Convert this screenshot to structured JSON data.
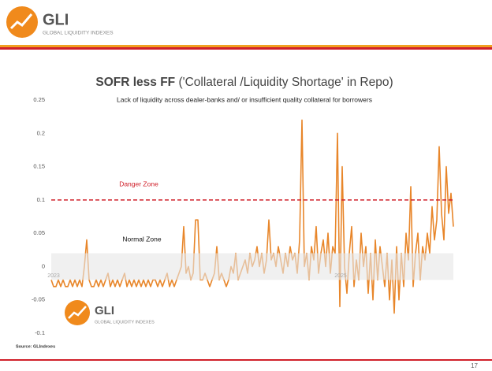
{
  "header": {
    "brand": "GLI",
    "tagline": "GLOBAL LIQUIDITY INDEXES"
  },
  "chart_data": {
    "type": "line",
    "title_bold": "SOFR less FF",
    "title_rest": "('Collateral /Liquidity Shortage' in Repo)",
    "subtitle": "Lack of liquidity across dealer-banks and/ or insufficient quality collateral for borrowers",
    "color": "#e8862a",
    "ylim": [
      -0.1,
      0.25
    ],
    "yticks": [
      -0.1,
      -0.05,
      0,
      0.05,
      0.1,
      0.15,
      0.2,
      0.25
    ],
    "grid": false,
    "threshold": 0.1,
    "threshold_label": "Danger Zone",
    "threshold_color": "#d0202a",
    "band": [
      -0.02,
      0.02
    ],
    "band_label": "Normal Zone",
    "period_labels": [
      "2023",
      "2025"
    ],
    "values": [
      -0.02,
      -0.03,
      -0.03,
      -0.02,
      -0.03,
      -0.02,
      -0.03,
      -0.03,
      -0.02,
      -0.03,
      -0.02,
      -0.03,
      -0.02,
      -0.03,
      0.0,
      0.04,
      -0.02,
      -0.03,
      -0.03,
      -0.02,
      -0.03,
      -0.02,
      -0.03,
      -0.02,
      -0.01,
      -0.03,
      -0.02,
      -0.03,
      -0.02,
      -0.03,
      -0.02,
      -0.01,
      -0.03,
      -0.02,
      -0.03,
      -0.02,
      -0.03,
      -0.02,
      -0.03,
      -0.02,
      -0.03,
      -0.02,
      -0.03,
      -0.02,
      -0.02,
      -0.03,
      -0.02,
      -0.03,
      -0.02,
      -0.01,
      -0.03,
      -0.02,
      -0.03,
      -0.02,
      -0.01,
      0.0,
      0.06,
      -0.01,
      0.0,
      -0.02,
      -0.01,
      0.07,
      0.07,
      -0.02,
      -0.02,
      -0.01,
      -0.02,
      -0.03,
      -0.02,
      -0.01,
      0.03,
      -0.02,
      -0.01,
      -0.02,
      -0.03,
      -0.02,
      0.0,
      -0.01,
      0.02,
      -0.02,
      -0.01,
      0.0,
      0.01,
      -0.01,
      0.02,
      0.0,
      0.01,
      0.03,
      0.0,
      0.02,
      -0.01,
      0.01,
      0.07,
      0.01,
      0.02,
      0.0,
      0.03,
      0.01,
      -0.01,
      0.02,
      0.0,
      0.03,
      0.01,
      0.02,
      -0.01,
      0.04,
      0.22,
      0.0,
      0.02,
      -0.02,
      0.03,
      0.01,
      0.06,
      -0.01,
      0.02,
      0.04,
      0.0,
      0.05,
      -0.01,
      0.03,
      0.02,
      0.2,
      -0.06,
      0.15,
      0.0,
      -0.04,
      0.02,
      0.06,
      -0.03,
      0.01,
      -0.02,
      0.05,
      0.0,
      0.03,
      -0.04,
      0.02,
      -0.05,
      0.04,
      -0.02,
      0.03,
      0.0,
      -0.03,
      0.02,
      -0.05,
      0.01,
      -0.07,
      0.03,
      -0.05,
      0.02,
      -0.03,
      0.05,
      0.01,
      0.12,
      -0.03,
      0.02,
      0.05,
      -0.02,
      0.03,
      0.01,
      0.05,
      0.02,
      0.09,
      0.04,
      0.07,
      0.18,
      0.08,
      0.04,
      0.15,
      0.08,
      0.11,
      0.06
    ],
    "source": "Source: GLIndexes"
  },
  "page_number": "17"
}
